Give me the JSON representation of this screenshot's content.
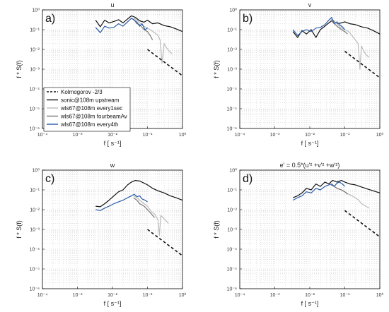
{
  "chart_data": [
    {
      "type": "line",
      "panel_label": "a)",
      "title": "u",
      "xlabel": "f [ s⁻¹]",
      "ylabel": "f * S(f)",
      "x_scale": "log",
      "y_scale": "log",
      "xlim": [
        0.0001,
        1
      ],
      "ylim": [
        1e-06,
        1
      ],
      "x_ticks": [
        0.0001,
        0.001,
        0.01,
        0.1,
        1
      ],
      "x_tick_labels": [
        "10⁻⁴",
        "10⁻³",
        "10⁻²",
        "10⁻¹",
        "10⁰"
      ],
      "y_ticks": [
        1e-06,
        1e-05,
        0.0001,
        0.001,
        0.01,
        0.1,
        1
      ],
      "y_tick_labels": [
        "10⁻⁶",
        "10⁻⁵",
        "10⁻⁴",
        "10⁻³",
        "10⁻²",
        "10⁻¹",
        "10⁰"
      ],
      "grid": true,
      "legend_position": "lower-left",
      "series": [
        {
          "name": "sonic@108m upstream",
          "color": "#111111",
          "x": [
            0.0033,
            0.0045,
            0.006,
            0.008,
            0.011,
            0.015,
            0.02,
            0.027,
            0.035,
            0.045,
            0.06,
            0.08,
            0.1,
            0.14,
            0.2,
            0.3,
            0.45,
            0.65,
            1.0
          ],
          "y": [
            0.3,
            0.14,
            0.3,
            0.22,
            0.26,
            0.32,
            0.22,
            0.35,
            0.5,
            0.42,
            0.28,
            0.24,
            0.3,
            0.2,
            0.22,
            0.16,
            0.14,
            0.11,
            0.08
          ]
        },
        {
          "name": "wls67@108m every1sec",
          "color": "#bbbbbb",
          "x": [
            0.04,
            0.05,
            0.06,
            0.08,
            0.1,
            0.13,
            0.16,
            0.2,
            0.23,
            0.26,
            0.3,
            0.35,
            0.42,
            0.5
          ],
          "y": [
            0.4,
            0.3,
            0.22,
            0.15,
            0.12,
            0.09,
            0.07,
            0.05,
            0.03,
            0.002,
            0.02,
            0.012,
            0.008,
            0.006
          ]
        },
        {
          "name": "wls67@108m fourbeamAv",
          "color": "#777777",
          "x": [
            0.04,
            0.05,
            0.06,
            0.08,
            0.1,
            0.12,
            0.14
          ],
          "y": [
            0.35,
            0.2,
            0.18,
            0.1,
            0.08,
            0.05,
            0.03
          ]
        },
        {
          "name": "wls67@108m every4th",
          "color": "#2a5ba8",
          "x": [
            0.0033,
            0.0045,
            0.006,
            0.008,
            0.011,
            0.015,
            0.02,
            0.027,
            0.035,
            0.042,
            0.05,
            0.06,
            0.07,
            0.085,
            0.1
          ],
          "y": [
            0.13,
            0.07,
            0.15,
            0.12,
            0.13,
            0.2,
            0.15,
            0.25,
            0.38,
            0.3,
            0.24,
            0.15,
            0.2,
            0.1,
            0.12
          ]
        },
        {
          "name": "Kolmogorov -2/3",
          "color": "#111111",
          "dashed": true,
          "x": [
            0.1,
            1.0
          ],
          "y": [
            0.01,
            0.000464
          ]
        }
      ],
      "legend_entries": [
        "Kolmogorov -2/3",
        "sonic@108m upstream",
        "wls67@108m every1sec",
        "wls67@108m fourbeamAv",
        "wls67@108m every4th"
      ]
    },
    {
      "type": "line",
      "panel_label": "b)",
      "title": "v",
      "xlabel": "f [ s⁻¹]",
      "ylabel": "f * S(f)",
      "x_scale": "log",
      "y_scale": "log",
      "xlim": [
        0.0001,
        1
      ],
      "ylim": [
        1e-06,
        1
      ],
      "x_ticks": [
        0.0001,
        0.001,
        0.01,
        0.1,
        1
      ],
      "x_tick_labels": [
        "10⁻⁴",
        "10⁻³",
        "10⁻²",
        "10⁻¹",
        "10⁰"
      ],
      "y_ticks": [
        1e-06,
        1e-05,
        0.0001,
        0.001,
        0.01,
        0.1,
        1
      ],
      "y_tick_labels": [
        "10⁻⁶",
        "10⁻⁵",
        "10⁻⁴",
        "10⁻³",
        "10⁻²",
        "10⁻¹",
        "10⁰"
      ],
      "grid": true,
      "series": [
        {
          "name": "sonic@108m upstream",
          "color": "#111111",
          "x": [
            0.0033,
            0.0045,
            0.006,
            0.008,
            0.011,
            0.015,
            0.02,
            0.027,
            0.035,
            0.045,
            0.06,
            0.08,
            0.1,
            0.14,
            0.2,
            0.3,
            0.45,
            0.65,
            1.0
          ],
          "y": [
            0.08,
            0.04,
            0.09,
            0.06,
            0.1,
            0.04,
            0.1,
            0.15,
            0.22,
            0.3,
            0.2,
            0.22,
            0.25,
            0.2,
            0.18,
            0.14,
            0.12,
            0.09,
            0.06
          ]
        },
        {
          "name": "wls67@108m every1sec",
          "color": "#bbbbbb",
          "x": [
            0.04,
            0.05,
            0.06,
            0.08,
            0.1,
            0.13,
            0.16,
            0.2,
            0.24,
            0.27,
            0.3,
            0.35,
            0.42,
            0.5
          ],
          "y": [
            0.35,
            0.25,
            0.2,
            0.12,
            0.1,
            0.08,
            0.05,
            0.03,
            0.02,
            0.001,
            0.015,
            0.008,
            0.005,
            0.004
          ]
        },
        {
          "name": "wls67@108m fourbeamAv",
          "color": "#777777",
          "x": [
            0.04,
            0.05,
            0.06,
            0.08,
            0.1,
            0.12
          ],
          "y": [
            0.3,
            0.2,
            0.15,
            0.1,
            0.08,
            0.06
          ]
        },
        {
          "name": "wls67@108m every4th",
          "color": "#2a5ba8",
          "x": [
            0.0033,
            0.0045,
            0.006,
            0.008,
            0.011,
            0.015,
            0.02,
            0.027,
            0.035,
            0.042,
            0.05,
            0.06,
            0.07,
            0.085,
            0.1
          ],
          "y": [
            0.1,
            0.05,
            0.08,
            0.1,
            0.08,
            0.12,
            0.13,
            0.18,
            0.3,
            0.42,
            0.2,
            0.25,
            0.18,
            0.14,
            0.1
          ]
        },
        {
          "name": "Kolmogorov -2/3",
          "color": "#111111",
          "dashed": true,
          "x": [
            0.1,
            1.0
          ],
          "y": [
            0.008,
            0.000371
          ]
        }
      ]
    },
    {
      "type": "line",
      "panel_label": "c)",
      "title": "w",
      "xlabel": "f [ s⁻¹]",
      "ylabel": "f * S(f)",
      "x_scale": "log",
      "y_scale": "log",
      "xlim": [
        0.0001,
        1
      ],
      "ylim": [
        1e-06,
        1
      ],
      "x_ticks": [
        0.0001,
        0.001,
        0.01,
        0.1,
        1
      ],
      "x_tick_labels": [
        "10⁻⁴",
        "10⁻³",
        "10⁻²",
        "10⁻¹",
        "10⁰"
      ],
      "y_ticks": [
        1e-06,
        1e-05,
        0.0001,
        0.001,
        0.01,
        0.1,
        1
      ],
      "y_tick_labels": [
        "10⁻⁶",
        "10⁻⁵",
        "10⁻⁴",
        "10⁻³",
        "10⁻²",
        "10⁻¹",
        "10⁰"
      ],
      "grid": true,
      "series": [
        {
          "name": "sonic@108m upstream",
          "color": "#111111",
          "x": [
            0.0033,
            0.0045,
            0.006,
            0.008,
            0.011,
            0.015,
            0.02,
            0.027,
            0.035,
            0.045,
            0.06,
            0.08,
            0.1,
            0.14,
            0.2,
            0.3,
            0.45,
            0.65,
            1.0
          ],
          "y": [
            0.015,
            0.014,
            0.02,
            0.03,
            0.05,
            0.08,
            0.1,
            0.18,
            0.25,
            0.3,
            0.28,
            0.22,
            0.18,
            0.12,
            0.09,
            0.07,
            0.05,
            0.04,
            0.03
          ]
        },
        {
          "name": "wls67@108m every1sec",
          "color": "#bbbbbb",
          "x": [
            0.04,
            0.05,
            0.06,
            0.08,
            0.1,
            0.13,
            0.16,
            0.2,
            0.22,
            0.24,
            0.28,
            0.32,
            0.4
          ],
          "y": [
            0.05,
            0.04,
            0.03,
            0.02,
            0.015,
            0.008,
            0.006,
            0.003,
            0.0005,
            0.005,
            0.004,
            0.003,
            0.002
          ]
        },
        {
          "name": "wls67@108m fourbeamAv",
          "color": "#777777",
          "x": [
            0.04,
            0.05,
            0.06,
            0.08,
            0.1,
            0.13,
            0.16
          ],
          "y": [
            0.04,
            0.03,
            0.02,
            0.015,
            0.01,
            0.006,
            0.004
          ]
        },
        {
          "name": "wls67@108m every4th",
          "color": "#2a5ba8",
          "x": [
            0.0033,
            0.0045,
            0.006,
            0.008,
            0.011,
            0.015,
            0.02,
            0.027,
            0.035,
            0.042,
            0.05,
            0.06,
            0.07,
            0.085,
            0.1
          ],
          "y": [
            0.01,
            0.009,
            0.012,
            0.015,
            0.02,
            0.025,
            0.03,
            0.04,
            0.05,
            0.06,
            0.045,
            0.05,
            0.035,
            0.03,
            0.025
          ]
        },
        {
          "name": "Kolmogorov -2/3",
          "color": "#111111",
          "dashed": true,
          "x": [
            0.1,
            1.0
          ],
          "y": [
            0.001,
            4.64e-05
          ]
        }
      ]
    },
    {
      "type": "line",
      "panel_label": "d)",
      "title": "e' = 0.5*(u'² +v'² +w'²)",
      "xlabel": "f [ s⁻¹]",
      "ylabel": "f * S(f)",
      "x_scale": "log",
      "y_scale": "log",
      "xlim": [
        0.0001,
        1
      ],
      "ylim": [
        1e-06,
        1
      ],
      "x_ticks": [
        0.0001,
        0.001,
        0.01,
        0.1,
        1
      ],
      "x_tick_labels": [
        "10⁻⁴",
        "10⁻³",
        "10⁻²",
        "10⁻¹",
        "10⁰"
      ],
      "y_ticks": [
        1e-06,
        1e-05,
        0.0001,
        0.001,
        0.01,
        0.1,
        1
      ],
      "y_tick_labels": [
        "10⁻⁶",
        "10⁻⁵",
        "10⁻⁴",
        "10⁻³",
        "10⁻²",
        "10⁻¹",
        "10⁰"
      ],
      "grid": true,
      "series": [
        {
          "name": "sonic@108m upstream",
          "color": "#111111",
          "x": [
            0.0033,
            0.0045,
            0.006,
            0.008,
            0.011,
            0.015,
            0.02,
            0.027,
            0.035,
            0.045,
            0.06,
            0.08,
            0.1,
            0.14,
            0.2,
            0.3,
            0.45,
            0.65,
            1.0
          ],
          "y": [
            0.04,
            0.05,
            0.07,
            0.12,
            0.1,
            0.2,
            0.15,
            0.25,
            0.2,
            0.3,
            0.25,
            0.3,
            0.25,
            0.2,
            0.18,
            0.14,
            0.11,
            0.09,
            0.07
          ]
        },
        {
          "name": "wls67@108m every1sec",
          "color": "#bbbbbb",
          "x": [
            0.04,
            0.05,
            0.06,
            0.08,
            0.1,
            0.13,
            0.16,
            0.2,
            0.25,
            0.3,
            0.4,
            0.5
          ],
          "y": [
            0.2,
            0.15,
            0.12,
            0.1,
            0.08,
            0.06,
            0.05,
            0.04,
            0.03,
            0.02,
            0.015,
            0.012
          ]
        },
        {
          "name": "wls67@108m fourbeamAv",
          "color": "#777777",
          "x": [
            0.04,
            0.05,
            0.06,
            0.08,
            0.1,
            0.12
          ],
          "y": [
            0.18,
            0.15,
            0.12,
            0.1,
            0.08,
            0.06
          ]
        },
        {
          "name": "wls67@108m every4th",
          "color": "#2a5ba8",
          "x": [
            0.0033,
            0.0045,
            0.006,
            0.008,
            0.011,
            0.015,
            0.02,
            0.027,
            0.035,
            0.042,
            0.05,
            0.06,
            0.07,
            0.085,
            0.1
          ],
          "y": [
            0.03,
            0.04,
            0.05,
            0.08,
            0.07,
            0.12,
            0.1,
            0.15,
            0.18,
            0.2,
            0.15,
            0.22,
            0.25,
            0.2,
            0.15
          ]
        },
        {
          "name": "Kolmogorov -2/3",
          "color": "#111111",
          "dashed": true,
          "x": [
            0.1,
            1.0
          ],
          "y": [
            0.009,
            0.000418
          ]
        }
      ]
    }
  ]
}
